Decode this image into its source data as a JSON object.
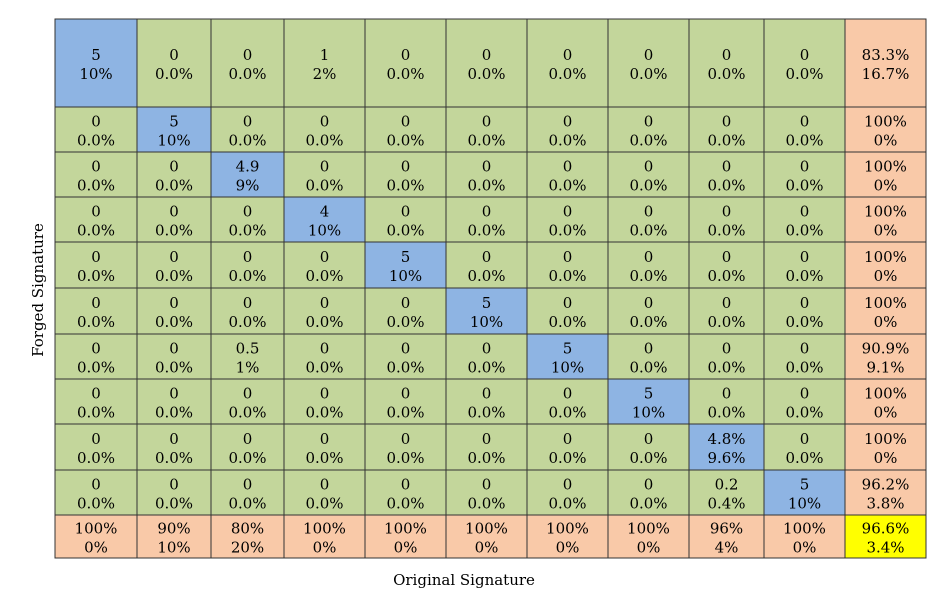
{
  "chart_data": {
    "type": "table",
    "title": "",
    "xlabel": "Original Signature",
    "ylabel": "Forged Signature",
    "colors": {
      "diagonal": "#8EB4E3",
      "off_diagonal": "#C3D69B",
      "summary": "#F9C9A8",
      "overall": "#FFFF00",
      "border": "#333333"
    },
    "rows": [
      {
        "cells": [
          [
            "5",
            "10%"
          ],
          [
            "0",
            "0.0%"
          ],
          [
            "0",
            "0.0%"
          ],
          [
            "1",
            "2%"
          ],
          [
            "0",
            "0.0%"
          ],
          [
            "0",
            "0.0%"
          ],
          [
            "0",
            "0.0%"
          ],
          [
            "0",
            "0.0%"
          ],
          [
            "0",
            "0.0%"
          ],
          [
            "0",
            "0.0%"
          ]
        ],
        "summary": [
          "83.3%",
          "16.7%"
        ]
      },
      {
        "cells": [
          [
            "0",
            "0.0%"
          ],
          [
            "5",
            "10%"
          ],
          [
            "0",
            "0.0%"
          ],
          [
            "0",
            "0.0%"
          ],
          [
            "0",
            "0.0%"
          ],
          [
            "0",
            "0.0%"
          ],
          [
            "0",
            "0.0%"
          ],
          [
            "0",
            "0.0%"
          ],
          [
            "0",
            "0.0%"
          ],
          [
            "0",
            "0.0%"
          ]
        ],
        "summary": [
          "100%",
          "0%"
        ]
      },
      {
        "cells": [
          [
            "0",
            "0.0%"
          ],
          [
            "0",
            "0.0%"
          ],
          [
            "4.9",
            "9%"
          ],
          [
            "0",
            "0.0%"
          ],
          [
            "0",
            "0.0%"
          ],
          [
            "0",
            "0.0%"
          ],
          [
            "0",
            "0.0%"
          ],
          [
            "0",
            "0.0%"
          ],
          [
            "0",
            "0.0%"
          ],
          [
            "0",
            "0.0%"
          ]
        ],
        "summary": [
          "100%",
          "0%"
        ]
      },
      {
        "cells": [
          [
            "0",
            "0.0%"
          ],
          [
            "0",
            "0.0%"
          ],
          [
            "0",
            "0.0%"
          ],
          [
            "4",
            "10%"
          ],
          [
            "0",
            "0.0%"
          ],
          [
            "0",
            "0.0%"
          ],
          [
            "0",
            "0.0%"
          ],
          [
            "0",
            "0.0%"
          ],
          [
            "0",
            "0.0%"
          ],
          [
            "0",
            "0.0%"
          ]
        ],
        "summary": [
          "100%",
          "0%"
        ]
      },
      {
        "cells": [
          [
            "0",
            "0.0%"
          ],
          [
            "0",
            "0.0%"
          ],
          [
            "0",
            "0.0%"
          ],
          [
            "0",
            "0.0%"
          ],
          [
            "5",
            "10%"
          ],
          [
            "0",
            "0.0%"
          ],
          [
            "0",
            "0.0%"
          ],
          [
            "0",
            "0.0%"
          ],
          [
            "0",
            "0.0%"
          ],
          [
            "0",
            "0.0%"
          ]
        ],
        "summary": [
          "100%",
          "0%"
        ]
      },
      {
        "cells": [
          [
            "0",
            "0.0%"
          ],
          [
            "0",
            "0.0%"
          ],
          [
            "0",
            "0.0%"
          ],
          [
            "0",
            "0.0%"
          ],
          [
            "0",
            "0.0%"
          ],
          [
            "5",
            "10%"
          ],
          [
            "0",
            "0.0%"
          ],
          [
            "0",
            "0.0%"
          ],
          [
            "0",
            "0.0%"
          ],
          [
            "0",
            "0.0%"
          ]
        ],
        "summary": [
          "100%",
          "0%"
        ]
      },
      {
        "cells": [
          [
            "0",
            "0.0%"
          ],
          [
            "0",
            "0.0%"
          ],
          [
            "0.5",
            "1%"
          ],
          [
            "0",
            "0.0%"
          ],
          [
            "0",
            "0.0%"
          ],
          [
            "0",
            "0.0%"
          ],
          [
            "5",
            "10%"
          ],
          [
            "0",
            "0.0%"
          ],
          [
            "0",
            "0.0%"
          ],
          [
            "0",
            "0.0%"
          ]
        ],
        "summary": [
          "90.9%",
          "9.1%"
        ]
      },
      {
        "cells": [
          [
            "0",
            "0.0%"
          ],
          [
            "0",
            "0.0%"
          ],
          [
            "0",
            "0.0%"
          ],
          [
            "0",
            "0.0%"
          ],
          [
            "0",
            "0.0%"
          ],
          [
            "0",
            "0.0%"
          ],
          [
            "0",
            "0.0%"
          ],
          [
            "5",
            "10%"
          ],
          [
            "0",
            "0.0%"
          ],
          [
            "0",
            "0.0%"
          ]
        ],
        "summary": [
          "100%",
          "0%"
        ]
      },
      {
        "cells": [
          [
            "0",
            "0.0%"
          ],
          [
            "0",
            "0.0%"
          ],
          [
            "0",
            "0.0%"
          ],
          [
            "0",
            "0.0%"
          ],
          [
            "0",
            "0.0%"
          ],
          [
            "0",
            "0.0%"
          ],
          [
            "0",
            "0.0%"
          ],
          [
            "0",
            "0.0%"
          ],
          [
            "4.8%",
            "9.6%"
          ],
          [
            "0",
            "0.0%"
          ]
        ],
        "summary": [
          "100%",
          "0%"
        ]
      },
      {
        "cells": [
          [
            "0",
            "0.0%"
          ],
          [
            "0",
            "0.0%"
          ],
          [
            "0",
            "0.0%"
          ],
          [
            "0",
            "0.0%"
          ],
          [
            "0",
            "0.0%"
          ],
          [
            "0",
            "0.0%"
          ],
          [
            "0",
            "0.0%"
          ],
          [
            "0",
            "0.0%"
          ],
          [
            "0.2",
            "0.4%"
          ],
          [
            "5",
            "10%"
          ]
        ],
        "summary": [
          "96.2%",
          "3.8%"
        ]
      }
    ],
    "column_summary": [
      [
        "100%",
        "0%"
      ],
      [
        "90%",
        "10%"
      ],
      [
        "80%",
        "20%"
      ],
      [
        "100%",
        "0%"
      ],
      [
        "100%",
        "0%"
      ],
      [
        "100%",
        "0%"
      ],
      [
        "100%",
        "0%"
      ],
      [
        "100%",
        "0%"
      ],
      [
        "96%",
        "4%"
      ],
      [
        "100%",
        "0%"
      ]
    ],
    "overall": [
      "96.6%",
      "3.4%"
    ]
  }
}
